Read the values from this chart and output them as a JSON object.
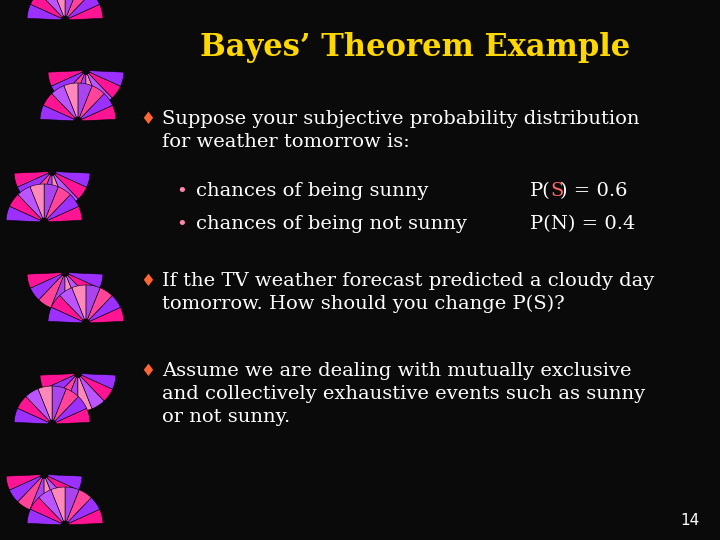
{
  "title": "Bayes’ Theorem Example",
  "title_color": "#FFD700",
  "title_fontsize": 22,
  "background_color": "#0a0a0a",
  "text_color": "#FFFFFF",
  "bullet_color": "#FF6633",
  "bullet1_line1": "Suppose your subjective probability distribution",
  "bullet1_line2": "for weather tomorrow is:",
  "sub_bullet1": "chances of being sunny",
  "sub_bullet2": "chances of being not sunny",
  "prob_S_color": "#FF6666",
  "bullet2_line1": "If the TV weather forecast predicted a cloudy day",
  "bullet2_line2": "tomorrow. How should you change P(S)?",
  "bullet3_line1": "Assume we are dealing with mutually exclusive",
  "bullet3_line2": "and collectively exhaustive events such as sunny",
  "bullet3_line3": "or not sunny.",
  "page_number": "14",
  "sub_bullet_dot_color": "#FF88AA",
  "snake_colors_pink": [
    "#FF1493",
    "#FF69B4",
    "#FF4499",
    "#CC0066",
    "#FF88BB",
    "#DD0077"
  ],
  "snake_colors_purple": [
    "#8B00CC",
    "#9B30FF",
    "#7722BB",
    "#AA44EE",
    "#6600AA",
    "#BB55FF"
  ]
}
